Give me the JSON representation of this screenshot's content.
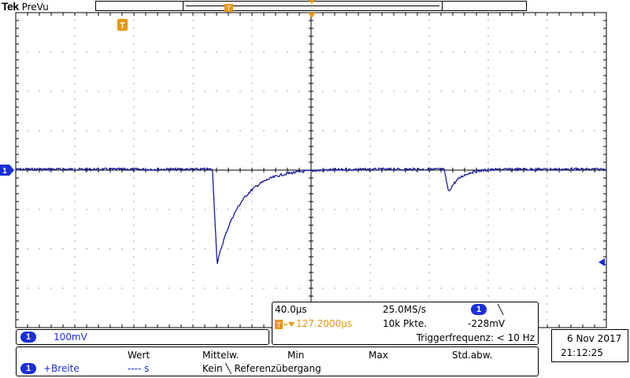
{
  "header": {
    "brand": "Tek",
    "mode": "PreVu"
  },
  "markers": {
    "trigger_glyph": "T",
    "channel_glyph": "1"
  },
  "channel": {
    "number": "1",
    "scale": "100mV"
  },
  "acquisition": {
    "timebase": "40.0µs",
    "sample_rate": "25.0MS/s",
    "trigger_channel": "1",
    "trigger_slope_icon": "falling-edge-icon",
    "trigger_slope_glyph": "╲",
    "trigger_position": "127.2000µs",
    "record_length": "10k Pkte.",
    "trigger_level": "-228mV",
    "trigger_frequency": "Triggerfrequenz: < 10 Hz"
  },
  "datetime": {
    "date": "6 Nov  2017",
    "time": "21:12:25"
  },
  "measurement": {
    "headers": {
      "value": "Wert",
      "mean": "Mittelw.",
      "min": "Min",
      "max": "Max",
      "std": "Std.abw."
    },
    "row": {
      "channel": "1",
      "name": "+Breite",
      "value": "----  s",
      "status": "Kein",
      "status_glyph": "╲",
      "status_text": "Referenzübergang"
    }
  },
  "colors": {
    "waveform": "#1a1a9c",
    "channel_badge": "#1a2fd8",
    "trigger_marker": "#e8960a",
    "graticule": "#000000"
  },
  "waveform": {
    "baseline_level": 0,
    "pulses": [
      {
        "start_div": 3.33,
        "depth_div": -2.4,
        "recovery_div": 0.7
      },
      {
        "start_div": 7.25,
        "depth_div": -0.58,
        "recovery_div": 0.35
      }
    ]
  }
}
